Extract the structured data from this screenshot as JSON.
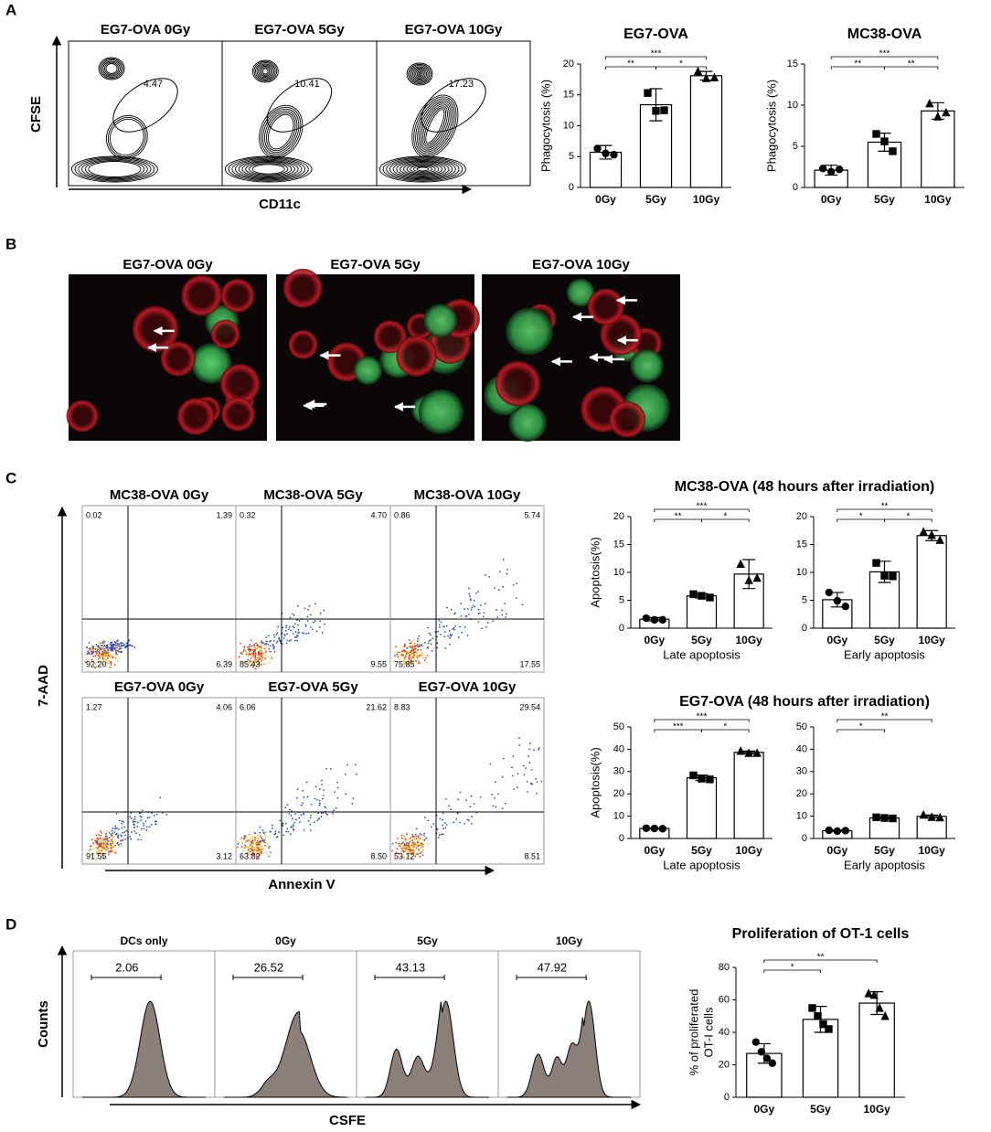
{
  "panel_a": {
    "label": "A",
    "flow": {
      "titles": [
        "EG7-OVA 0Gy",
        "EG7-OVA 5Gy",
        "EG7-OVA 10Gy"
      ],
      "gates": [
        "4.47",
        "10.41",
        "17.23"
      ],
      "x_label": "CD11c",
      "y_label": "CFSE"
    }
  },
  "panel_b": {
    "label": "B",
    "titles": [
      "EG7-OVA 0Gy",
      "EG7-OVA 5Gy",
      "EG7-OVA 10Gy"
    ]
  },
  "panel_c": {
    "label": "C",
    "group_titles": [
      "MC38-OVA (48 hours after irradiation)",
      "EG7-OVA (48 hours after irradiation)"
    ],
    "flow": {
      "titles": [
        "MC38-OVA 0Gy",
        "MC38-OVA 5Gy",
        "MC38-OVA 10Gy",
        "EG7-OVA 0Gy",
        "EG7-OVA 5Gy",
        "EG7-OVA 10Gy"
      ],
      "quadrants": [
        [
          "0.02",
          "1.39",
          "92.20",
          "6.39"
        ],
        [
          "0.32",
          "4.70",
          "85.43",
          "9.55"
        ],
        [
          "0.86",
          "5.74",
          "75.85",
          "17.55"
        ],
        [
          "1.27",
          "4.06",
          "91.55",
          "3.12"
        ],
        [
          "6.06",
          "21.62",
          "63.82",
          "8.50"
        ],
        [
          "8.83",
          "29.54",
          "53.12",
          "8.51"
        ]
      ],
      "x_label": "Annexin V",
      "y_label": "7-AAD"
    }
  },
  "panel_d": {
    "label": "D",
    "flow": {
      "titles": [
        "DCs only",
        "0Gy",
        "5Gy",
        "10Gy"
      ],
      "gates": [
        "2.06",
        "26.52",
        "43.13",
        "47.92"
      ],
      "x_label": "CSFE",
      "y_label": "Counts"
    }
  },
  "chart_data": [
    {
      "type": "bar",
      "title": "EG7-OVA",
      "y_label": "Phagocytosis (%)",
      "categories": [
        "0Gy",
        "5Gy",
        "10Gy"
      ],
      "values": [
        5.7,
        13.4,
        18.1
      ],
      "errors": [
        1.1,
        2.6,
        0.7
      ],
      "points": [
        [
          6.3,
          5.5,
          5.3
        ],
        [
          15.3,
          12.4,
          12.5
        ],
        [
          18.8,
          17.7,
          17.8
        ]
      ],
      "markers": [
        "circle",
        "square",
        "triangle"
      ],
      "ylim": [
        0,
        20
      ],
      "yticks": [
        0,
        5,
        10,
        15,
        20
      ],
      "significance": [
        {
          "groups": [
            "0Gy",
            "10Gy"
          ],
          "label": "***"
        },
        {
          "groups": [
            "0Gy",
            "5Gy"
          ],
          "label": "**"
        },
        {
          "groups": [
            "5Gy",
            "10Gy"
          ],
          "label": "*"
        }
      ],
      "color": "#ffffff"
    },
    {
      "type": "bar",
      "title": "MC38-OVA",
      "y_label": "Phagocytosis (%)",
      "categories": [
        "0Gy",
        "5Gy",
        "10Gy"
      ],
      "values": [
        2.1,
        5.5,
        9.3
      ],
      "errors": [
        0.6,
        1.1,
        1.0
      ],
      "points": [
        [
          2.3,
          1.9,
          2.2
        ],
        [
          6.5,
          5.6,
          4.4
        ],
        [
          10.2,
          8.6,
          9.1
        ]
      ],
      "markers": [
        "circle",
        "square",
        "triangle"
      ],
      "ylim": [
        0,
        15
      ],
      "yticks": [
        0,
        5,
        10,
        15
      ],
      "significance": [
        {
          "groups": [
            "0Gy",
            "10Gy"
          ],
          "label": "***"
        },
        {
          "groups": [
            "0Gy",
            "5Gy"
          ],
          "label": "**"
        },
        {
          "groups": [
            "5Gy",
            "10Gy"
          ],
          "label": "**"
        }
      ],
      "color": "#ffffff"
    },
    {
      "type": "bar",
      "y_label": "Apoptosis(%)",
      "x_label": "Late apoptosis",
      "categories": [
        "0Gy",
        "5Gy",
        "10Gy"
      ],
      "values": [
        1.6,
        5.8,
        9.7
      ],
      "errors": [
        0.3,
        0.4,
        2.6
      ],
      "points": [
        [
          1.8,
          1.5,
          1.5
        ],
        [
          6.1,
          5.8,
          5.5
        ],
        [
          11.5,
          8.6,
          9.0
        ]
      ],
      "markers": [
        "circle",
        "square",
        "triangle"
      ],
      "ylim": [
        0,
        20
      ],
      "yticks": [
        0,
        5,
        10,
        15,
        20
      ],
      "significance": [
        {
          "groups": [
            "0Gy",
            "10Gy"
          ],
          "label": "***"
        },
        {
          "groups": [
            "0Gy",
            "5Gy"
          ],
          "label": "**"
        },
        {
          "groups": [
            "5Gy",
            "10Gy"
          ],
          "label": "*"
        }
      ],
      "color": "#ffffff"
    },
    {
      "type": "bar",
      "x_label": "Early apoptosis",
      "categories": [
        "0Gy",
        "5Gy",
        "10Gy"
      ],
      "values": [
        5.1,
        10.1,
        16.6
      ],
      "errors": [
        1.3,
        1.9,
        0.9
      ],
      "points": [
        [
          6.4,
          4.9,
          3.9
        ],
        [
          11.7,
          9.4,
          9.3
        ],
        [
          17.3,
          16.7,
          15.8
        ]
      ],
      "markers": [
        "circle",
        "square",
        "triangle"
      ],
      "ylim": [
        0,
        20
      ],
      "yticks": [
        0,
        5,
        10,
        15,
        20
      ],
      "significance": [
        {
          "groups": [
            "0Gy",
            "10Gy"
          ],
          "label": "**"
        },
        {
          "groups": [
            "0Gy",
            "5Gy"
          ],
          "label": "*"
        },
        {
          "groups": [
            "5Gy",
            "10Gy"
          ],
          "label": "*"
        }
      ],
      "color": "#ffffff"
    },
    {
      "type": "bar",
      "y_label": "Apoptosis(%)",
      "x_label": "Late apoptosis",
      "categories": [
        "0Gy",
        "5Gy",
        "10Gy"
      ],
      "values": [
        4.5,
        27.2,
        38.6
      ],
      "errors": [
        0.2,
        1.2,
        0.6
      ],
      "points": [
        [
          4.6,
          4.5,
          4.4
        ],
        [
          28.3,
          26.8,
          26.5
        ],
        [
          39.2,
          38.3,
          38.3
        ]
      ],
      "markers": [
        "circle",
        "square",
        "triangle"
      ],
      "ylim": [
        0,
        50
      ],
      "yticks": [
        0,
        10,
        20,
        30,
        40,
        50
      ],
      "significance": [
        {
          "groups": [
            "0Gy",
            "10Gy"
          ],
          "label": "***"
        },
        {
          "groups": [
            "0Gy",
            "5Gy"
          ],
          "label": "***"
        },
        {
          "groups": [
            "5Gy",
            "10Gy"
          ],
          "label": "*"
        }
      ],
      "color": "#ffffff"
    },
    {
      "type": "bar",
      "x_label": "Early apoptosis",
      "categories": [
        "0Gy",
        "5Gy",
        "10Gy"
      ],
      "values": [
        3.5,
        9.2,
        9.9
      ],
      "errors": [
        0.3,
        0.3,
        0.6
      ],
      "points": [
        [
          3.7,
          3.3,
          3.5
        ],
        [
          9.5,
          9.2,
          9.0
        ],
        [
          10.6,
          9.6,
          9.4
        ]
      ],
      "markers": [
        "circle",
        "square",
        "triangle"
      ],
      "ylim": [
        0,
        50
      ],
      "yticks": [
        0,
        10,
        20,
        30,
        40,
        50
      ],
      "significance": [
        {
          "groups": [
            "0Gy",
            "10Gy"
          ],
          "label": "**"
        },
        {
          "groups": [
            "0Gy",
            "5Gy"
          ],
          "label": "*"
        }
      ],
      "color": "#ffffff"
    },
    {
      "type": "bar",
      "title": "Proliferation of OT-1 cells",
      "y_label_lines": [
        "% of proliferated",
        "OT-I cells"
      ],
      "categories": [
        "0Gy",
        "5Gy",
        "10Gy"
      ],
      "values": [
        27,
        48,
        58
      ],
      "errors": [
        6,
        8,
        7
      ],
      "points": [
        [
          34,
          28,
          24,
          21
        ],
        [
          55,
          50,
          45,
          42
        ],
        [
          64,
          63,
          55,
          50
        ]
      ],
      "markers": [
        "circle",
        "square",
        "triangle"
      ],
      "ylim": [
        0,
        80
      ],
      "yticks": [
        0,
        20,
        40,
        60,
        80
      ],
      "significance": [
        {
          "groups": [
            "0Gy",
            "5Gy"
          ],
          "label": "*"
        },
        {
          "groups": [
            "0Gy",
            "10Gy"
          ],
          "label": "**"
        }
      ],
      "color": "#ffffff"
    }
  ]
}
